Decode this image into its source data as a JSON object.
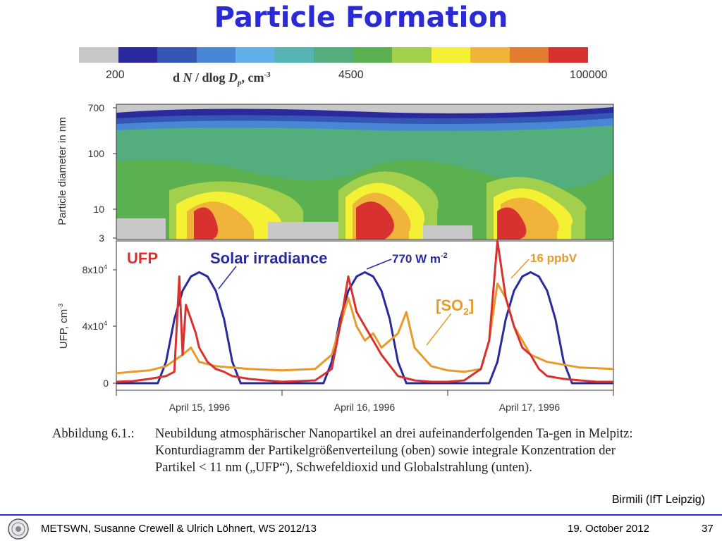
{
  "title": "Particle Formation",
  "colorbar": {
    "colors": [
      "#c8c8c8",
      "#2a2a9e",
      "#3457b6",
      "#4a86d6",
      "#61aee8",
      "#56b3b3",
      "#54ad7c",
      "#5bb04f",
      "#a2d04c",
      "#f4f034",
      "#f0b43a",
      "#e27c2e",
      "#d93030"
    ],
    "tick_labels": [
      "200",
      "4500",
      "100000"
    ],
    "title_parts": [
      "d ",
      "N",
      " / dlog ",
      "D",
      "p",
      ", cm",
      "-3"
    ]
  },
  "chart_data": [
    {
      "type": "heatmap",
      "ylabel": "Particle diameter in nm",
      "yticks": [
        "700",
        "100",
        "10",
        "3"
      ],
      "y_scale": "log",
      "ylim": [
        3,
        700
      ],
      "description_note": ""
    },
    {
      "type": "line",
      "ylabel": "UFP, cm-3",
      "ytick_labels": [
        "8x10",
        "4x10",
        "0"
      ],
      "ytick_exponents": [
        "4",
        "4",
        ""
      ],
      "yticks": [
        80000,
        40000,
        0
      ],
      "xtick_labels": [
        "April 15, 1996",
        "April 16, 1996",
        "April 17, 1996"
      ],
      "xlim": [
        0,
        3
      ],
      "x_unit": "days",
      "ylim": [
        0,
        100000
      ],
      "series": [
        {
          "name": "UFP",
          "color": "#d93030",
          "x": [
            0,
            0.1,
            0.2,
            0.3,
            0.35,
            0.38,
            0.4,
            0.42,
            0.45,
            0.48,
            0.5,
            0.55,
            0.6,
            0.65,
            0.7,
            0.8,
            0.9,
            1.0,
            1.2,
            1.3,
            1.35,
            1.4,
            1.45,
            1.5,
            1.55,
            1.6,
            1.7,
            1.8,
            1.9,
            2.0,
            2.1,
            2.2,
            2.25,
            2.3,
            2.35,
            2.4,
            2.45,
            2.5,
            2.55,
            2.6,
            2.7,
            2.8,
            2.9,
            3.0
          ],
          "values": [
            1000,
            1500,
            3000,
            5000,
            8000,
            75000,
            20000,
            55000,
            45000,
            35000,
            25000,
            15000,
            10000,
            8000,
            5000,
            3000,
            2000,
            1000,
            2000,
            10000,
            40000,
            75000,
            50000,
            40000,
            30000,
            20000,
            5000,
            2000,
            1000,
            1000,
            2000,
            10000,
            30000,
            100000,
            60000,
            40000,
            25000,
            20000,
            10000,
            5000,
            3000,
            2000,
            1000,
            1000
          ],
          "label_parts": [
            "UFP"
          ]
        },
        {
          "name": "Solar irradiance",
          "color": "#2a2a9e",
          "x": [
            0,
            0.25,
            0.3,
            0.35,
            0.4,
            0.45,
            0.5,
            0.55,
            0.6,
            0.65,
            0.7,
            0.75,
            0.8,
            1.25,
            1.3,
            1.35,
            1.4,
            1.45,
            1.5,
            1.55,
            1.6,
            1.65,
            1.7,
            1.75,
            1.8,
            2.25,
            2.3,
            2.35,
            2.4,
            2.45,
            2.5,
            2.55,
            2.6,
            2.65,
            2.7,
            2.75,
            2.8,
            3.0
          ],
          "values": [
            0,
            0,
            15000,
            45000,
            65000,
            75000,
            78000,
            75000,
            65000,
            45000,
            15000,
            0,
            0,
            0,
            15000,
            45000,
            65000,
            75000,
            78000,
            75000,
            65000,
            45000,
            15000,
            0,
            0,
            0,
            15000,
            45000,
            65000,
            75000,
            78000,
            75000,
            65000,
            45000,
            15000,
            0,
            0,
            0
          ],
          "label_parts": [
            "Solar irradiance"
          ],
          "annotation_parts": [
            "770 W m",
            "-2"
          ]
        },
        {
          "name": "[SO2]",
          "color": "#e89a2a",
          "x": [
            0,
            0.1,
            0.2,
            0.3,
            0.4,
            0.45,
            0.5,
            0.6,
            0.8,
            1.0,
            1.2,
            1.3,
            1.4,
            1.45,
            1.5,
            1.55,
            1.6,
            1.7,
            1.75,
            1.8,
            1.9,
            2.0,
            2.1,
            2.2,
            2.25,
            2.3,
            2.35,
            2.4,
            2.45,
            2.5,
            2.6,
            2.8,
            3.0
          ],
          "values": [
            7000,
            8000,
            9000,
            12000,
            20000,
            25000,
            15000,
            12000,
            10000,
            9000,
            10000,
            20000,
            60000,
            40000,
            30000,
            35000,
            25000,
            35000,
            50000,
            25000,
            12000,
            9000,
            8000,
            10000,
            30000,
            70000,
            60000,
            40000,
            30000,
            20000,
            15000,
            11000,
            10000
          ],
          "label_parts": [
            "[SO",
            "2",
            "]"
          ],
          "annotation_parts": [
            "16 ppbV"
          ]
        }
      ]
    }
  ],
  "caption": {
    "label": "Abbildung 6.1.:",
    "text": "Neubildung atmosphärischer Nanopartikel an drei aufeinanderfolgenden Ta-gen in Melpitz: Konturdiagramm der Partikelgrößenverteilung (oben) sowie integrale Konzentration der Partikel < 11 nm („UFP“), Schwefeldioxid und Globalstrahlung (unten)."
  },
  "credit": "Birmili (IfT Leipzig)",
  "footer": {
    "left": "METSWN, Susanne Crewell & Ulrich Löhnert,  WS 2012/13",
    "date": "19. October 2012",
    "page": "37"
  }
}
